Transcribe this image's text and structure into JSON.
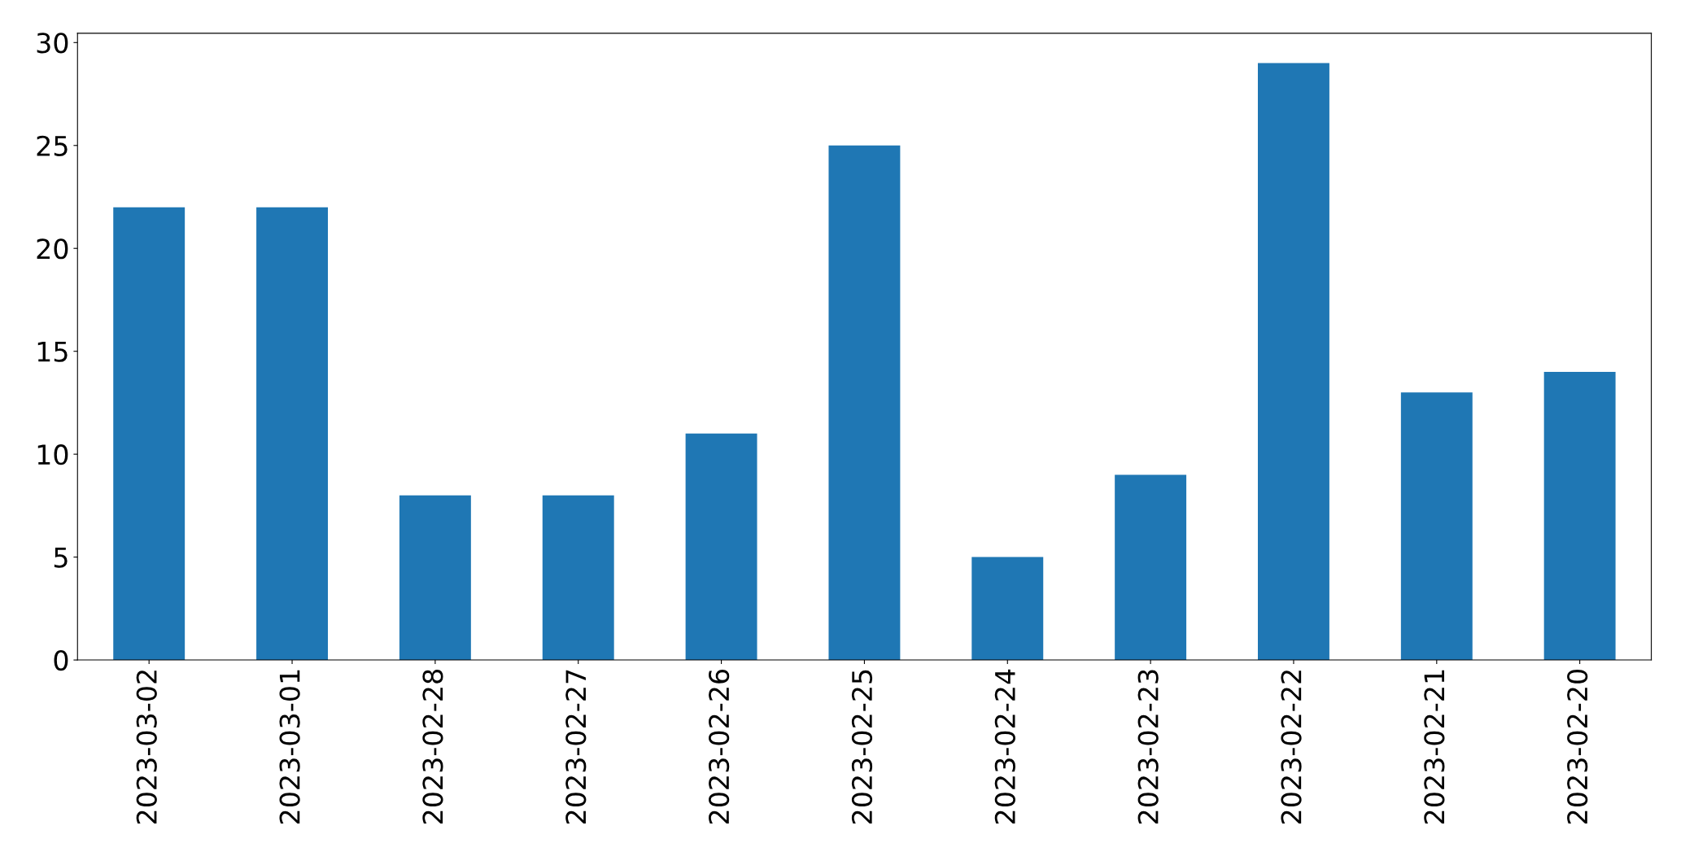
{
  "chart_data": {
    "type": "bar",
    "categories": [
      "2023-03-02",
      "2023-03-01",
      "2023-02-28",
      "2023-02-27",
      "2023-02-26",
      "2023-02-25",
      "2023-02-24",
      "2023-02-23",
      "2023-02-22",
      "2023-02-21",
      "2023-02-20"
    ],
    "values": [
      22,
      22,
      8,
      8,
      11,
      25,
      5,
      9,
      29,
      13,
      14
    ],
    "color": "#1f77b4",
    "ylim": [
      0,
      30.45
    ],
    "yticks": [
      0,
      5,
      10,
      15,
      20,
      25,
      30
    ],
    "grid": false,
    "legend": false
  }
}
